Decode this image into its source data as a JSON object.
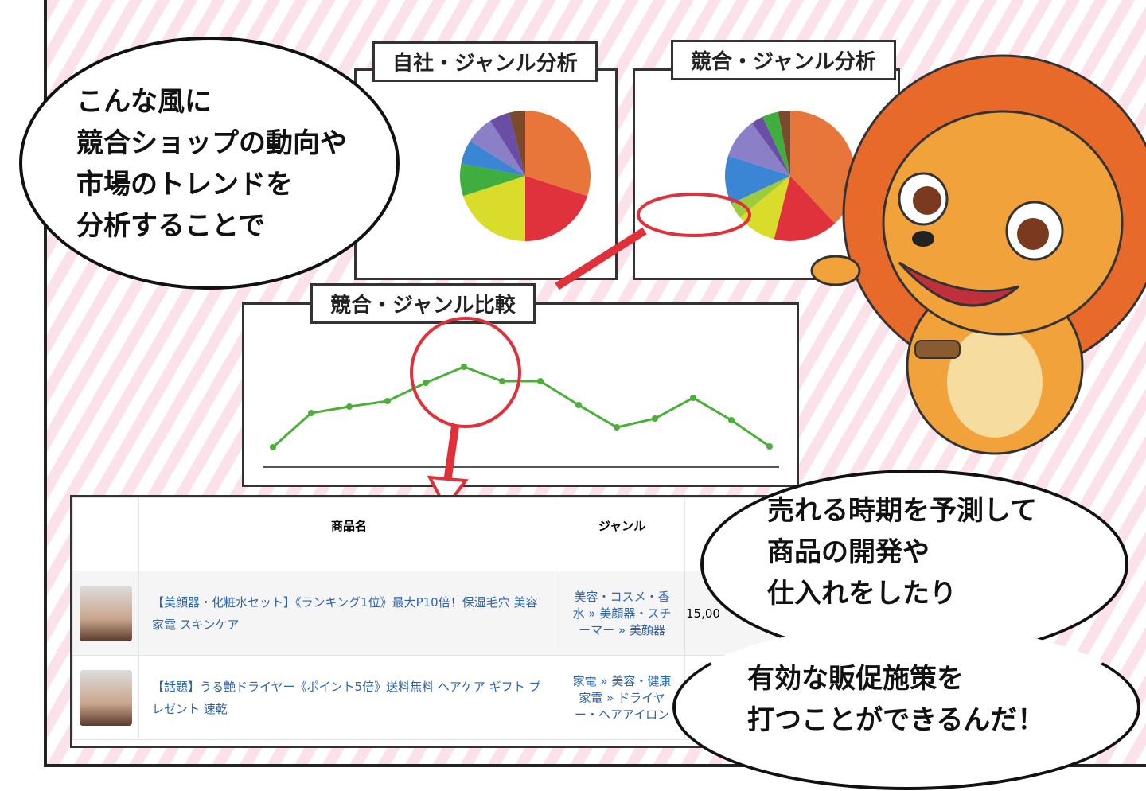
{
  "own_pie": {
    "title": "自社・ジャンル分析"
  },
  "comp_pie": {
    "title": "競合・ジャンル分析"
  },
  "compare": {
    "title": "競合・ジャンル比較"
  },
  "bubble_left": [
    "こんな風に",
    "競合ショップの動向や",
    "市場のトレンドを",
    "分析することで"
  ],
  "bubble_right_top": [
    "売れる時期を予測して",
    "商品の開発や",
    "仕入れをしたり"
  ],
  "bubble_right_bottom": [
    "有効な販促施策を",
    "打つことができるんだ！"
  ],
  "table": {
    "headers": {
      "name": "商品名",
      "genre": "ジャンル"
    },
    "rows": [
      {
        "name": "【美顔器・化粧水セット】《ランキング1位》最大P10倍！保湿毛穴 美容家電 スキンケア",
        "genre": "美容・コスメ・香水 » 美顔器・スチーマー » 美顔器",
        "price": "15,00"
      },
      {
        "name": "【話題】うる艶ドライヤー《ポイント5倍》送料無料 ヘアケア ギフト プレゼント 速乾",
        "genre": "家電 » 美容・健康家電 » ドライヤー・ヘアアイロン",
        "price": ""
      }
    ]
  },
  "chart_data": [
    {
      "type": "pie",
      "title": "自社・ジャンル分析",
      "values": [
        30,
        20,
        20,
        8,
        6,
        7,
        5,
        4
      ],
      "colors": [
        "#e8763a",
        "#e0323c",
        "#d9dc2a",
        "#3fae3e",
        "#3a86d4",
        "#8b7fc8",
        "#6a4ea6",
        "#7a4a2a"
      ]
    },
    {
      "type": "pie",
      "title": "競合・ジャンル分析",
      "values": [
        38,
        16,
        10,
        4,
        12,
        10,
        3,
        4,
        3
      ],
      "colors": [
        "#e8763a",
        "#e0323c",
        "#d9dc2a",
        "#9ccc3c",
        "#3a86d4",
        "#8b7fc8",
        "#6a4ea6",
        "#3fae3e",
        "#7a4a2a"
      ]
    },
    {
      "type": "line",
      "title": "競合・ジャンル比較",
      "values": [
        31,
        74,
        82,
        89,
        112,
        132,
        114,
        114,
        84,
        56,
        67,
        93,
        65,
        32
      ],
      "color": "#4caf3a"
    }
  ]
}
